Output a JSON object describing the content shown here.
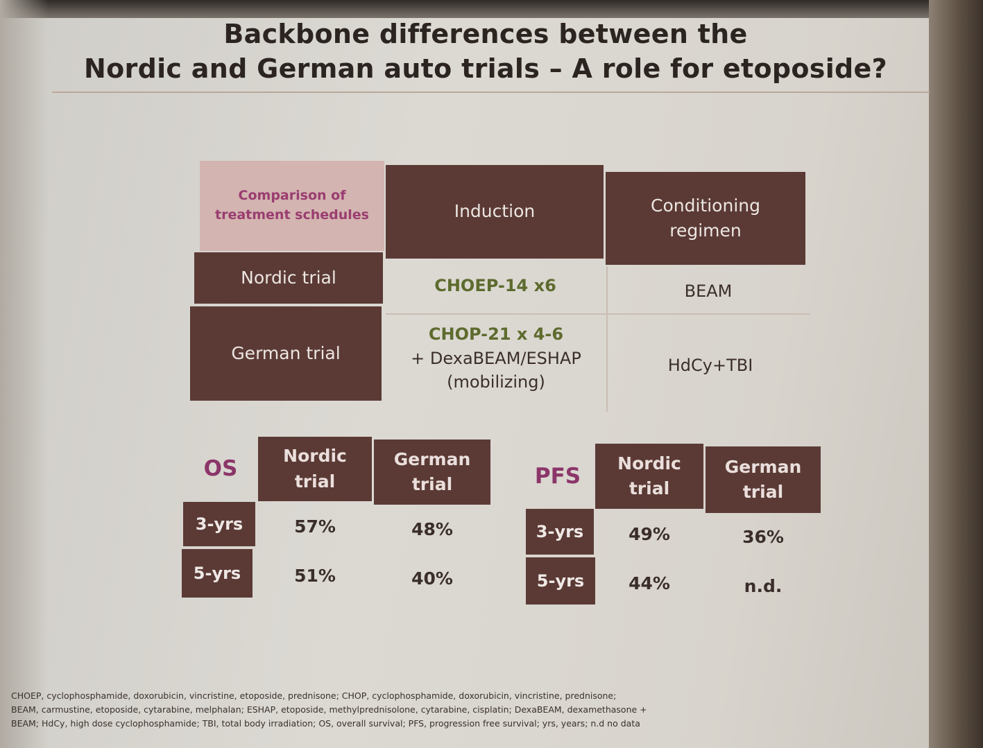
{
  "title": {
    "line1": "Backbone differences between the",
    "line2": "Nordic and German auto trials – A role for etoposide?"
  },
  "schedule_table": {
    "corner": "Comparison of treatment schedules",
    "col_induction": "Induction",
    "col_conditioning": "Conditioning regimen",
    "rows": [
      {
        "label": "Nordic trial",
        "induction_main": "CHOEP-14 x6",
        "induction_extra": "",
        "induction_note": "",
        "conditioning": "BEAM"
      },
      {
        "label": "German trial",
        "induction_main": "CHOP-21 x 4-6",
        "induction_extra": "+ DexaBEAM/ESHAP",
        "induction_note": "(mobilizing)",
        "conditioning": "HdCy+TBI"
      }
    ]
  },
  "os_table": {
    "label": "OS",
    "col_nordic": "Nordic trial",
    "col_german": "German trial",
    "rows": [
      {
        "label": "3-yrs",
        "nordic": "57%",
        "german": "48%"
      },
      {
        "label": "5-yrs",
        "nordic": "51%",
        "german": "40%"
      }
    ]
  },
  "pfs_table": {
    "label": "PFS",
    "col_nordic": "Nordic trial",
    "col_german": "German trial",
    "rows": [
      {
        "label": "3-yrs",
        "nordic": "49%",
        "german": "36%"
      },
      {
        "label": "5-yrs",
        "nordic": "44%",
        "german": "n.d."
      }
    ]
  },
  "footnote": {
    "line1": "CHOEP, cyclophosphamide, doxorubicin, vincristine, etoposide, prednisone; CHOP, cyclophosphamide, doxorubicin, vincristine, prednisone;",
    "line2": "BEAM, carmustine, etoposide, cytarabine, melphalan; ESHAP, etoposide, methylprednisolone, cytarabine, cisplatin; DexaBEAM, dexamethasone +",
    "line3": "BEAM; HdCy, high dose cyclophosphamide; TBI, total body irradiation; OS, overall survival; PFS, progression free survival; yrs, years; n.d no data"
  },
  "colors": {
    "header_brown": "#5b3a35",
    "corner_pink": "#d3b4b0",
    "magenta_text": "#8b3569",
    "green_text": "#5d6b2e"
  }
}
